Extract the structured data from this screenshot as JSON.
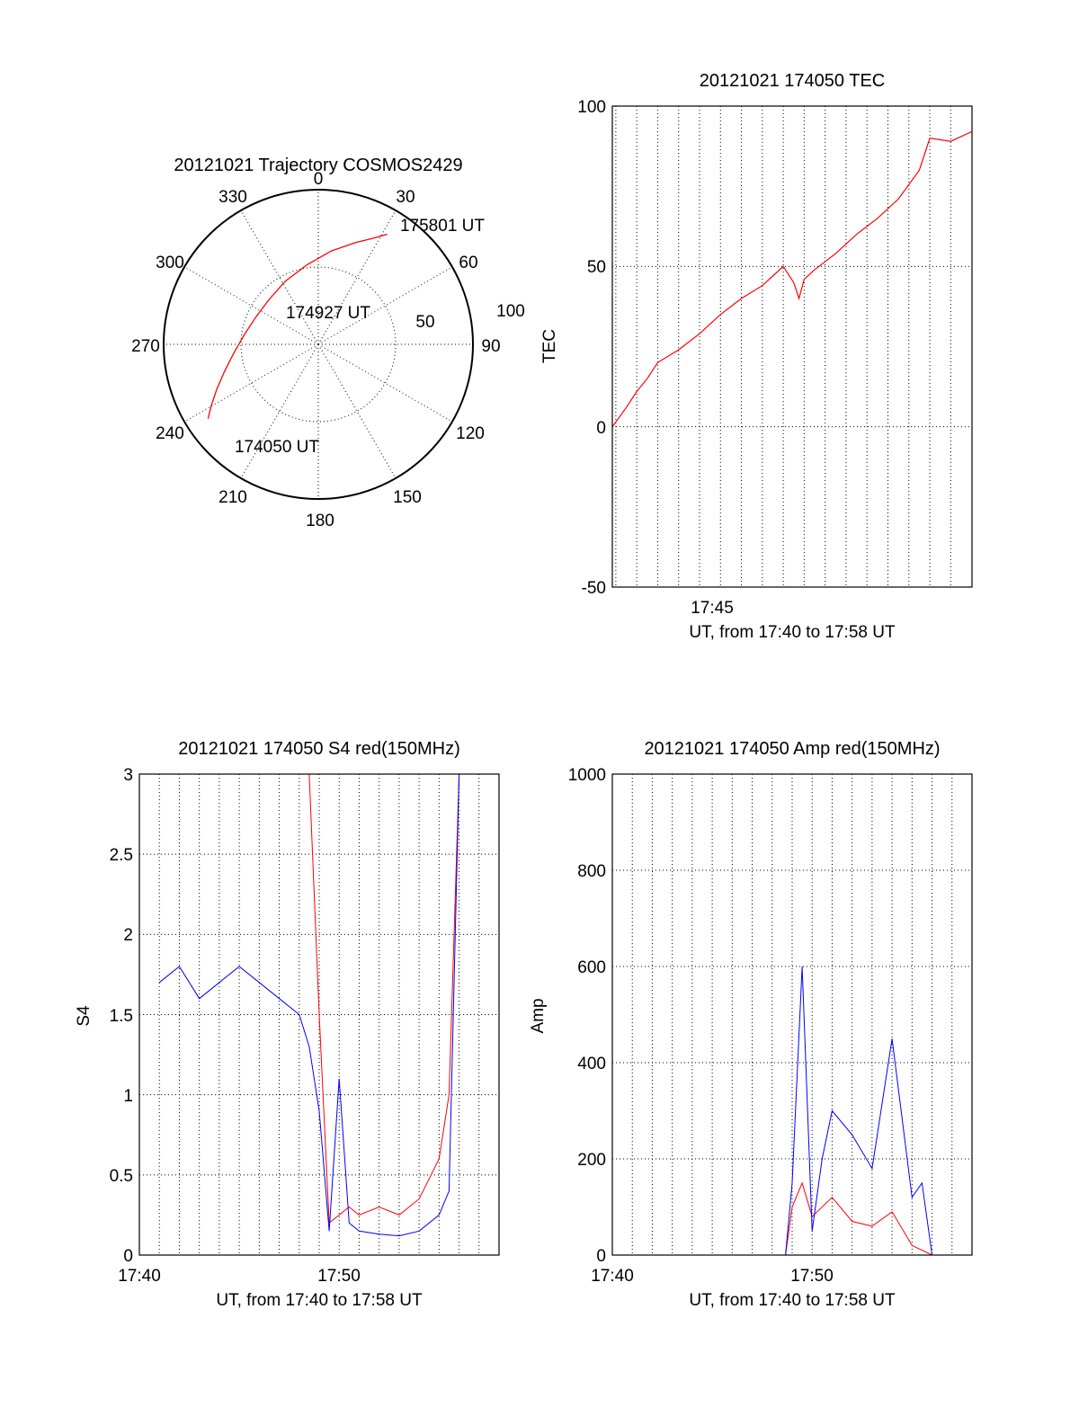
{
  "colors": {
    "red": "#ff0000",
    "blue": "#0000ff",
    "axis": "#000000",
    "background": "#ffffff"
  },
  "chart_data": [
    {
      "type": "polar",
      "title": "20121021 Trajectory COSMOS2429",
      "angle_labels": [
        "0",
        "30",
        "60",
        "90",
        "120",
        "150",
        "180",
        "210",
        "240",
        "270",
        "300",
        "330"
      ],
      "radial_labels": [
        "50",
        "100"
      ],
      "rlim": [
        0,
        100
      ],
      "annotations": [
        "175801 UT",
        "174927 UT",
        "174050 UT"
      ],
      "trajectory": {
        "color": "red",
        "azimuth_deg": [
          236,
          240,
          246,
          254,
          264,
          278,
          294,
          312,
          332,
          352,
          8,
          20,
          28,
          32
        ],
        "zenith_distance": [
          86,
          80,
          72,
          63,
          55,
          48,
          44,
          43,
          46,
          52,
          61,
          70,
          78,
          84
        ]
      }
    },
    {
      "type": "line",
      "title": "20121021 174050 TEC",
      "ylabel": "TEC",
      "xlabel": "UT, from 17:40 to 17:58 UT",
      "xticklabels": [
        "17:45"
      ],
      "yticklabels": [
        "100",
        "50",
        "0",
        "-50"
      ],
      "xlim": [
        "17:40:50",
        "17:58:01"
      ],
      "ylim": [
        -50,
        100
      ],
      "grid": true,
      "series": [
        {
          "color": "red",
          "x": [
            "17:40:50",
            "17:41:30",
            "17:42:00",
            "17:42:30",
            "17:43:00",
            "17:44:00",
            "17:45:00",
            "17:46:00",
            "17:47:00",
            "17:48:00",
            "17:48:30",
            "17:49:00",
            "17:49:30",
            "17:49:45",
            "17:50:00",
            "17:50:30",
            "17:51:30",
            "17:52:30",
            "17:53:30",
            "17:54:30",
            "17:55:30",
            "17:56:00",
            "17:57:00",
            "17:58:00"
          ],
          "values": [
            0,
            6,
            11,
            15,
            20,
            24,
            29,
            35,
            40,
            44,
            47,
            50,
            45,
            40,
            46,
            49,
            54,
            60,
            65,
            71,
            80,
            90,
            89,
            92
          ]
        }
      ]
    },
    {
      "type": "line",
      "title": "20121021 174050 S4 red(150MHz)",
      "ylabel": "S4",
      "xlabel": "UT, from 17:40 to 17:58 UT",
      "xticklabels": [
        "17:40",
        "17:50"
      ],
      "yticklabels": [
        "3",
        "2.5",
        "2",
        "1.5",
        "1",
        "0.5",
        "0"
      ],
      "xlim": [
        "17:40",
        "17:58"
      ],
      "ylim": [
        0,
        3
      ],
      "grid": true,
      "series": [
        {
          "color": "blue",
          "x": [
            "17:41",
            "17:42",
            "17:43",
            "17:44",
            "17:45",
            "17:46",
            "17:47",
            "17:48",
            "17:48:30",
            "17:49",
            "17:49:30",
            "17:50",
            "17:50:30",
            "17:51",
            "17:52",
            "17:53",
            "17:54",
            "17:55",
            "17:55:30",
            "17:56",
            "17:57",
            "17:58"
          ],
          "values": [
            1.7,
            1.8,
            1.6,
            1.7,
            1.8,
            1.7,
            1.6,
            1.5,
            1.3,
            0.9,
            0.15,
            1.1,
            0.2,
            0.15,
            0.13,
            0.12,
            0.15,
            0.25,
            0.4,
            3.0,
            3.0,
            3.0
          ]
        },
        {
          "color": "red",
          "x": [
            "17:47:30",
            "17:48",
            "17:48:30",
            "17:49",
            "17:49:30",
            "17:50",
            "17:50:30",
            "17:51",
            "17:52",
            "17:53",
            "17:54",
            "17:55",
            "17:55:30",
            "17:56",
            "17:57",
            "17:58"
          ],
          "values": [
            3.0,
            3.0,
            3.0,
            1.5,
            0.2,
            0.25,
            0.3,
            0.25,
            0.3,
            0.25,
            0.35,
            0.6,
            1.0,
            3.0,
            3.0,
            3.0
          ]
        }
      ]
    },
    {
      "type": "line",
      "title": "20121021 174050 Amp red(150MHz)",
      "ylabel": "Amp",
      "xlabel": "UT, from 17:40 to 17:58 UT",
      "xticklabels": [
        "17:40",
        "17:50"
      ],
      "yticklabels": [
        "1000",
        "800",
        "600",
        "400",
        "200",
        "0"
      ],
      "xlim": [
        "17:40",
        "17:58"
      ],
      "ylim": [
        0,
        1000
      ],
      "grid": true,
      "series": [
        {
          "color": "red",
          "x": [
            "17:40",
            "17:48:40",
            "17:49",
            "17:49:30",
            "17:50",
            "17:51",
            "17:52",
            "17:53",
            "17:54",
            "17:55",
            "17:56",
            "17:58"
          ],
          "values": [
            0,
            0,
            100,
            150,
            80,
            120,
            70,
            60,
            90,
            20,
            0,
            0
          ]
        },
        {
          "color": "blue",
          "x": [
            "17:40",
            "17:48:40",
            "17:49",
            "17:49:30",
            "17:50",
            "17:50:30",
            "17:51",
            "17:52",
            "17:53",
            "17:54",
            "17:55",
            "17:55:30",
            "17:56",
            "17:58"
          ],
          "values": [
            0,
            0,
            150,
            600,
            50,
            200,
            300,
            250,
            180,
            450,
            120,
            150,
            0,
            0
          ]
        }
      ]
    }
  ]
}
